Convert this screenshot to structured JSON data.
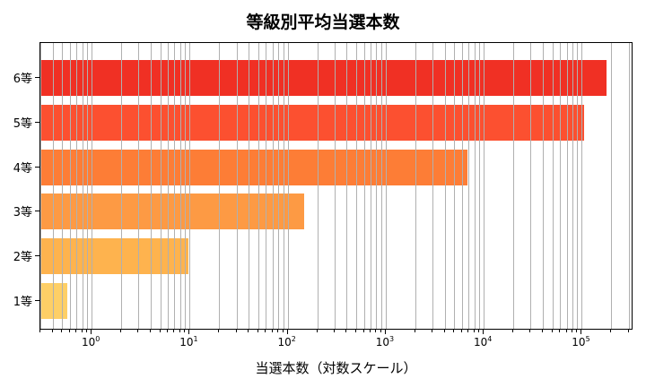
{
  "chart_data": {
    "type": "bar",
    "orientation": "horizontal",
    "title": "等級別平均当選本数",
    "xlabel": "当選本数（対数スケール）",
    "ylabel": "",
    "xscale": "log",
    "xlim": [
      0.3,
      336000
    ],
    "grid": {
      "x": true,
      "which": "both",
      "y": false
    },
    "categories": [
      "1等",
      "2等",
      "3等",
      "4等",
      "5等",
      "6等"
    ],
    "values": [
      0.57,
      9.7,
      147,
      6800,
      105000,
      178000
    ],
    "colors": [
      "#fecf66",
      "#feb34e",
      "#fd9a44",
      "#fd7d36",
      "#fc5030",
      "#f03024"
    ],
    "xticks": [
      {
        "base": "10",
        "exp": "0",
        "value": 1
      },
      {
        "base": "10",
        "exp": "1",
        "value": 10
      },
      {
        "base": "10",
        "exp": "2",
        "value": 100
      },
      {
        "base": "10",
        "exp": "3",
        "value": 1000
      },
      {
        "base": "10",
        "exp": "4",
        "value": 10000
      },
      {
        "base": "10",
        "exp": "5",
        "value": 100000
      }
    ]
  }
}
